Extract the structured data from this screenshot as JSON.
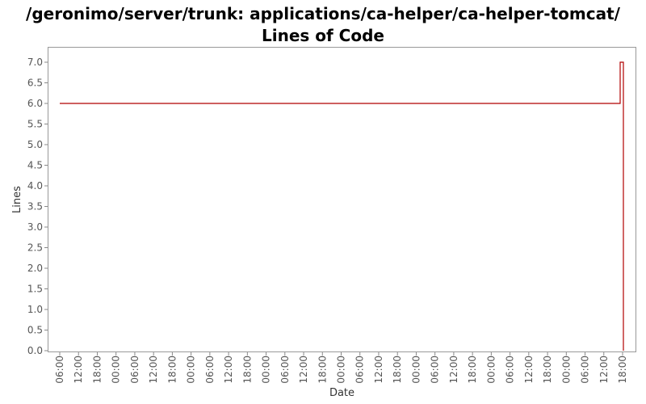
{
  "chart_data": {
    "type": "line",
    "title": "/geronimo/server/trunk: applications/ca-helper/ca-helper-tomcat/ Lines of Code",
    "xlabel": "Date",
    "ylabel": "Lines",
    "ylim": [
      0,
      7.0
    ],
    "yticks": [
      "0.0",
      "0.5",
      "1.0",
      "1.5",
      "2.0",
      "2.5",
      "3.0",
      "3.5",
      "4.0",
      "4.5",
      "5.0",
      "5.5",
      "6.0",
      "6.5",
      "7.0"
    ],
    "xticks": [
      "06:00",
      "12:00",
      "18:00",
      "00:00",
      "06:00",
      "12:00",
      "18:00",
      "00:00",
      "06:00",
      "12:00",
      "18:00",
      "00:00",
      "06:00",
      "12:00",
      "18:00",
      "00:00",
      "06:00",
      "12:00",
      "18:00",
      "00:00",
      "06:00",
      "12:00",
      "18:00",
      "00:00",
      "06:00",
      "12:00",
      "18:00",
      "00:00",
      "06:00",
      "12:00",
      "18:00"
    ],
    "grid": false,
    "series": [
      {
        "color": "#b00000",
        "step": true,
        "points": [
          {
            "x": "06:00",
            "y": 6
          },
          {
            "x": "18:00",
            "y": 6
          },
          {
            "x": "18:00",
            "y": 7
          },
          {
            "x": "18:00",
            "y": 0
          }
        ]
      }
    ]
  }
}
